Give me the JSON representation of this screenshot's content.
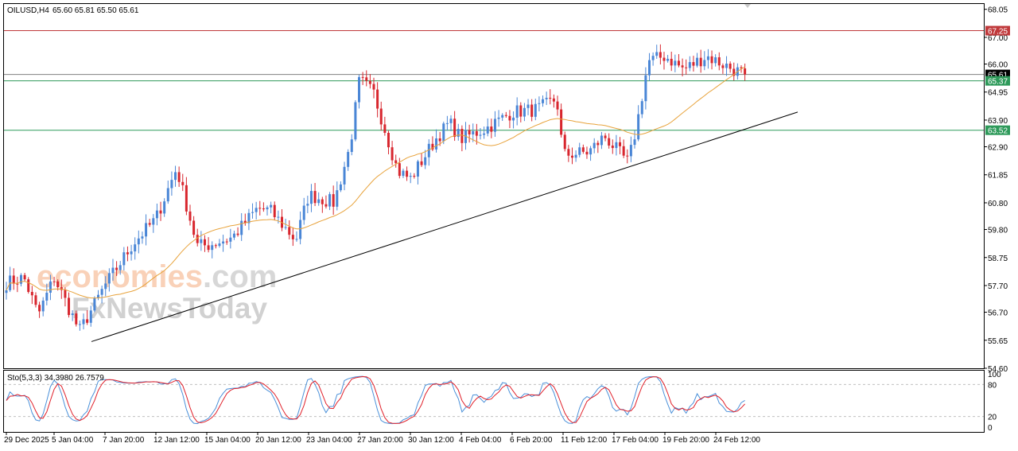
{
  "header": {
    "symbol": "OILUSD,H4",
    "ohlc": "65.60 65.81 65.50 65.61"
  },
  "watermark": {
    "part1": "economies",
    "part2": ".com",
    "part3": "FxNewsToday"
  },
  "stochastic": {
    "label": "Sto(5,3,3) 34.3980 26.7579",
    "levels": [
      "100",
      "80",
      "20",
      "0"
    ],
    "colors": {
      "main": "#4a90d9",
      "signal": "#e0202a"
    }
  },
  "colors": {
    "bull": "#4a86d6",
    "bear": "#d8262e",
    "ma": "#e8a33c",
    "resistance_line": "#c0393b",
    "support_line": "#2e9a5a",
    "trendline": "#000000",
    "current_price": "#808080"
  },
  "chart_data": {
    "type": "candlestick",
    "title": "OILUSD,H4",
    "ylim": [
      54.6,
      68.25
    ],
    "y_ticks": [
      "68.05",
      "67.00",
      "66.00",
      "64.95",
      "63.90",
      "62.90",
      "61.85",
      "60.80",
      "59.80",
      "58.75",
      "57.70",
      "56.70",
      "55.65",
      "54.60"
    ],
    "x_ticks": [
      "29 Dec 2025",
      "5 Jan 04:00",
      "7 Jan 20:00",
      "12 Jan 12:00",
      "15 Jan 04:00",
      "20 Jan 12:00",
      "23 Jan 04:00",
      "27 Jan 20:00",
      "30 Jan 12:00",
      "4 Feb 04:00",
      "6 Feb 20:00",
      "11 Feb 12:00",
      "17 Feb 04:00",
      "19 Feb 20:00",
      "24 Feb 12:00"
    ],
    "price_levels": [
      {
        "value": 67.25,
        "label": "67.25",
        "kind": "resistance"
      },
      {
        "value": 65.61,
        "label": "65.61",
        "kind": "current"
      },
      {
        "value": 65.37,
        "label": "65.37",
        "kind": "support"
      },
      {
        "value": 63.52,
        "label": "63.52",
        "kind": "support"
      }
    ],
    "trendline": {
      "from": {
        "x": "5 Jan 04:00",
        "y": 55.6
      },
      "to": {
        "x": "24 Feb 12:00",
        "y": 64.2
      }
    },
    "close_anchors": [
      {
        "x": "29 Dec 2025",
        "close": 57.8
      },
      {
        "x": "31 Dec",
        "close": 58.0
      },
      {
        "x": "2 Jan",
        "close": 56.6
      },
      {
        "x": "5 Jan 04:00",
        "close": 58.0
      },
      {
        "x": "6 Jan",
        "close": 56.0
      },
      {
        "x": "7 Jan 20:00",
        "close": 57.7
      },
      {
        "x": "9 Jan",
        "close": 59.3
      },
      {
        "x": "12 Jan 12:00",
        "close": 60.2
      },
      {
        "x": "13 Jan",
        "close": 62.1
      },
      {
        "x": "14 Jan",
        "close": 59.2
      },
      {
        "x": "15 Jan 04:00",
        "close": 59.2
      },
      {
        "x": "16 Jan",
        "close": 59.5
      },
      {
        "x": "19 Jan",
        "close": 60.6
      },
      {
        "x": "20 Jan 12:00",
        "close": 60.5
      },
      {
        "x": "21 Jan",
        "close": 59.4
      },
      {
        "x": "23 Jan 04:00",
        "close": 61.1
      },
      {
        "x": "26 Jan",
        "close": 60.8
      },
      {
        "x": "27 Jan",
        "close": 62.9
      },
      {
        "x": "27 Jan 20:00",
        "close": 65.4
      },
      {
        "x": "28 Jan",
        "close": 64.9
      },
      {
        "x": "29 Jan",
        "close": 62.0
      },
      {
        "x": "30 Jan 12:00",
        "close": 61.7
      },
      {
        "x": "2 Feb",
        "close": 63.2
      },
      {
        "x": "3 Feb",
        "close": 63.8
      },
      {
        "x": "4 Feb 04:00",
        "close": 63.2
      },
      {
        "x": "5 Feb",
        "close": 63.6
      },
      {
        "x": "6 Feb 20:00",
        "close": 64.2
      },
      {
        "x": "9 Feb",
        "close": 64.3
      },
      {
        "x": "10 Feb",
        "close": 64.7
      },
      {
        "x": "11 Feb 12:00",
        "close": 62.6
      },
      {
        "x": "12 Feb",
        "close": 62.7
      },
      {
        "x": "13 Feb",
        "close": 63.3
      },
      {
        "x": "16 Feb",
        "close": 62.3
      },
      {
        "x": "17 Feb 04:00",
        "close": 63.6
      },
      {
        "x": "18 Feb",
        "close": 66.1
      },
      {
        "x": "19 Feb 20:00",
        "close": 66.3
      },
      {
        "x": "20 Feb",
        "close": 65.8
      },
      {
        "x": "23 Feb",
        "close": 66.3
      },
      {
        "x": "24 Feb 12:00",
        "close": 65.6
      }
    ]
  }
}
